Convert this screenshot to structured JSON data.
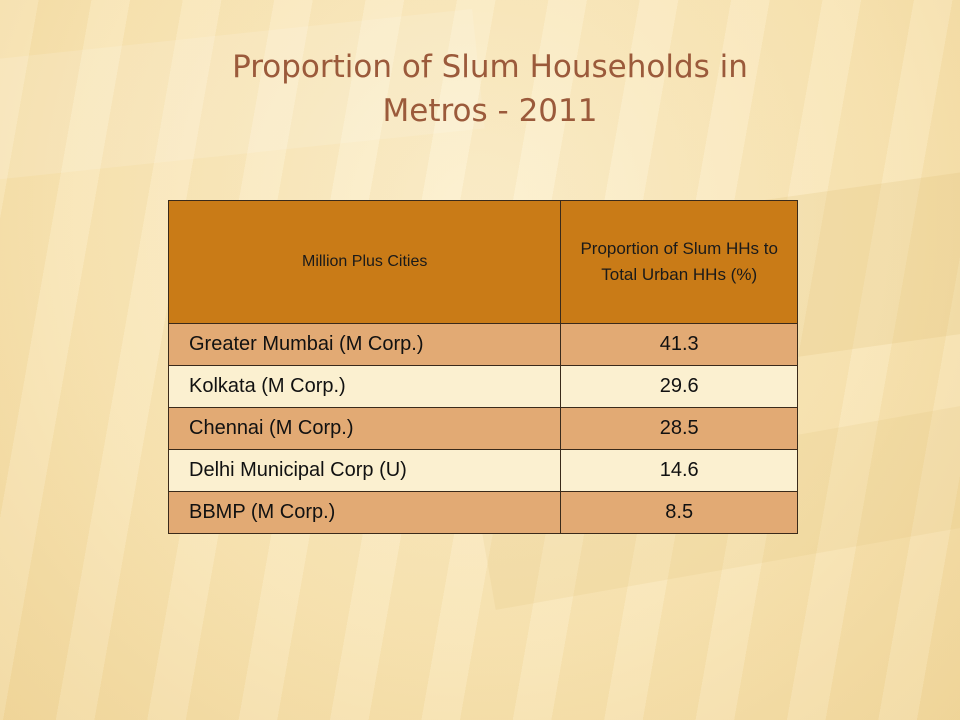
{
  "slide": {
    "title": "Proportion of Slum Households in\nMetros - 2011"
  },
  "table": {
    "headers": [
      "Million Plus Cities",
      "Proportion of Slum HHs to Total Urban HHs  (%)"
    ],
    "rows": [
      {
        "city": "Greater Mumbai (M Corp.)",
        "value": "41.3"
      },
      {
        "city": "Kolkata (M Corp.)",
        "value": "29.6"
      },
      {
        "city": "Chennai (M Corp.)",
        "value": "28.5"
      },
      {
        "city": "Delhi Municipal Corp (U)",
        "value": "14.6"
      },
      {
        "city": "BBMP (M Corp.)",
        "value": "8.5"
      }
    ]
  },
  "colors": {
    "title": "#9b5a3b",
    "header_bg": "#c97b17",
    "row_dark": "#e2aa74",
    "row_light": "#fbf0d0",
    "background": "#fbecc4"
  }
}
